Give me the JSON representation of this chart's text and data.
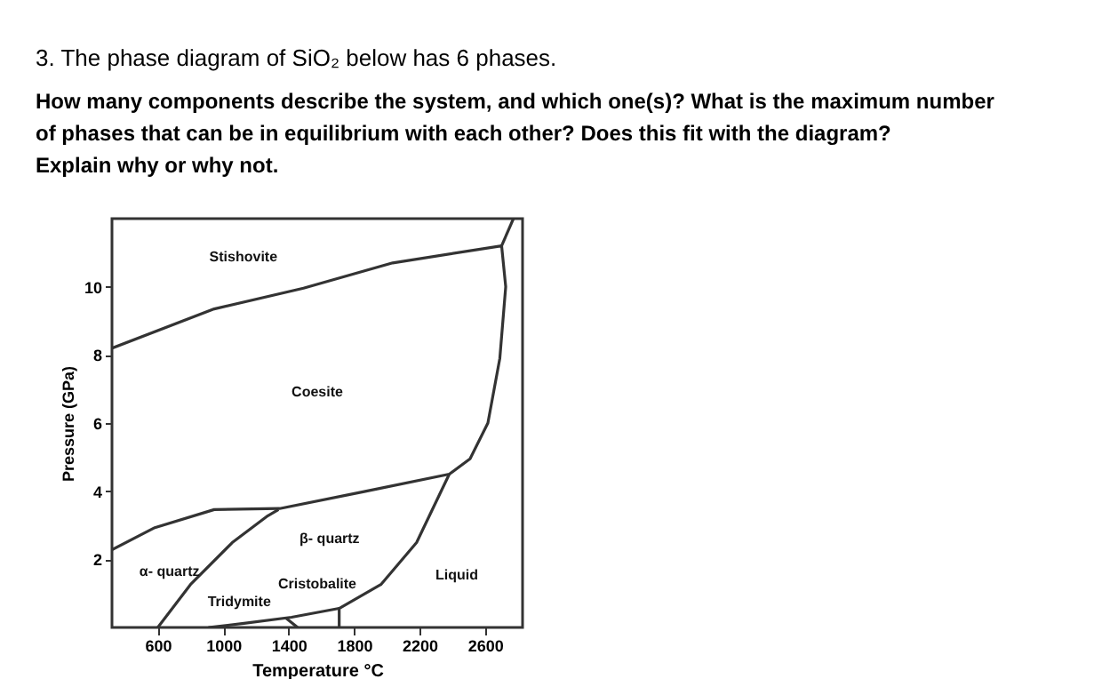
{
  "chart_data": {
    "type": "line",
    "title": "3.  The phase diagram of SiO₂ below has 6 phases.",
    "subtitle": "How many components describe the system, and which one(s)? What is the maximum number of phases that can be in equilibrium with each other? Does this fit with the diagram? Explain why or why not.",
    "xlabel": "Temperature °C",
    "ylabel": "Pressure (GPa)",
    "xlim": [
      320,
      2830
    ],
    "ylim": [
      0,
      12
    ],
    "xticks": [
      600,
      1000,
      1400,
      1800,
      2200,
      2600
    ],
    "yticks": [
      2,
      4,
      6,
      8,
      10
    ],
    "grid": false,
    "line_style": "solid",
    "marker": "none",
    "series": [
      {
        "color": "#333333",
        "x": [
          321,
          945,
          1491,
          2036,
          2702,
          2727,
          2691,
          2618,
          2509,
          2382,
          1855,
          1345,
          945,
          582,
          320
        ],
        "values": [
          8.2,
          9.35,
          9.96,
          10.7,
          11.2,
          10.0,
          7.9,
          6.0,
          4.95,
          4.5,
          3.98,
          3.49,
          3.46,
          2.93,
          2.28
        ]
      },
      {
        "color": "#333333",
        "x": [
          2702,
          2774
        ],
        "values": [
          11.2,
          12.0
        ]
      },
      {
        "color": "#333333",
        "x": [
          600,
          800,
          1055,
          1273,
          1338
        ],
        "values": [
          0,
          1.26,
          2.49,
          3.28,
          3.46
        ]
      },
      {
        "color": "#333333",
        "x": [
          2382,
          2182,
          1964,
          1709,
          1709
        ],
        "values": [
          4.5,
          2.49,
          1.26,
          0.56,
          0
        ]
      },
      {
        "color": "#333333",
        "x": [
          909,
          1127,
          1418,
          1709
        ],
        "values": [
          0,
          0.12,
          0.3,
          0.56
        ]
      },
      {
        "color": "#333333",
        "x": [
          1382,
          1455
        ],
        "values": [
          0.28,
          0
        ]
      }
    ],
    "annotations": [
      "Stishovite",
      "Coesite",
      "β- quartz",
      "α- quartz",
      "Liquid",
      "Cristobalite",
      "Tridymite"
    ]
  }
}
